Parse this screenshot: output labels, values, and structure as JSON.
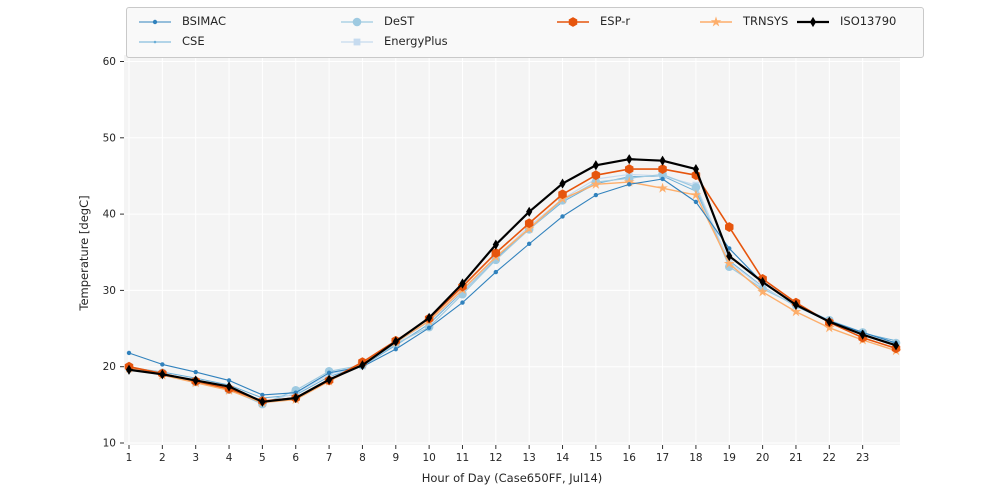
{
  "figure": {
    "background": "#ffffff",
    "panel_bg": "#f4f4f4",
    "grid_color": "#ffffff",
    "tick_color": "#333333",
    "legend_border": "#c9c9c9",
    "legend_bg": "#f9f9f9"
  },
  "chart_data": {
    "type": "line",
    "title": "",
    "xlabel": "Hour of Day (Case650FF, Jul14)",
    "ylabel": "Temperature [degC]",
    "xlim": [
      1,
      24
    ],
    "ylim": [
      10,
      60
    ],
    "x_ticks": [
      1,
      2,
      3,
      4,
      5,
      6,
      7,
      8,
      9,
      10,
      11,
      12,
      13,
      14,
      15,
      16,
      17,
      18,
      19,
      20,
      21,
      22,
      23
    ],
    "y_ticks": [
      10,
      20,
      30,
      40,
      50,
      60
    ],
    "grid": "on",
    "legend_position": "top",
    "x": [
      1,
      2,
      3,
      4,
      5,
      6,
      7,
      8,
      9,
      10,
      11,
      12,
      13,
      14,
      15,
      16,
      17,
      18,
      19,
      20,
      21,
      22,
      23,
      24
    ],
    "z_order": [
      1,
      3,
      2,
      5,
      0,
      4,
      6
    ],
    "series": [
      {
        "name": "BSIMAC",
        "color": "#3182bd",
        "marker": "dot",
        "line_width": 1.1,
        "values": [
          21.8,
          20.3,
          19.3,
          18.2,
          16.3,
          16.6,
          19.2,
          20.0,
          22.3,
          25.1,
          28.4,
          32.4,
          36.1,
          39.7,
          42.5,
          43.9,
          44.6,
          41.6,
          35.5,
          31.0,
          28.2,
          26.0,
          24.5,
          23.1
        ]
      },
      {
        "name": "CSE",
        "color": "#6baed6",
        "marker": "tiny",
        "line_width": 1.0,
        "values": [
          19.9,
          19.3,
          18.5,
          17.6,
          15.9,
          16.3,
          18.7,
          20.1,
          22.8,
          25.6,
          29.8,
          34.2,
          38.0,
          41.6,
          44.0,
          44.9,
          45.0,
          43.0,
          33.9,
          30.5,
          27.9,
          25.9,
          24.4,
          23.4
        ]
      },
      {
        "name": "DeST",
        "color": "#9ecae1",
        "marker": "circle",
        "line_width": 1.2,
        "values": [
          20.0,
          19.2,
          18.0,
          17.0,
          15.1,
          16.9,
          19.4,
          20.2,
          23.0,
          25.2,
          29.5,
          34.0,
          38.0,
          41.8,
          44.2,
          44.7,
          45.2,
          43.5,
          33.1,
          30.2,
          28.1,
          26.1,
          24.5,
          23.1
        ]
      },
      {
        "name": "EnergyPlus",
        "color": "#c6dbef",
        "marker": "square",
        "line_width": 1.2,
        "values": [
          19.9,
          19.1,
          17.9,
          16.9,
          15.3,
          16.5,
          19.0,
          20.1,
          23.1,
          25.9,
          29.9,
          34.3,
          38.4,
          42.0,
          44.6,
          45.2,
          45.0,
          43.8,
          33.7,
          30.4,
          28.0,
          26.0,
          24.3,
          22.9
        ]
      },
      {
        "name": "ESP-r",
        "color": "#e6550d",
        "marker": "hexagon",
        "line_width": 1.6,
        "values": [
          20.0,
          19.1,
          18.1,
          17.1,
          15.5,
          15.9,
          18.2,
          20.6,
          23.4,
          26.3,
          30.5,
          34.9,
          38.8,
          42.6,
          45.1,
          45.9,
          45.9,
          45.1,
          38.3,
          31.5,
          28.4,
          25.8,
          23.8,
          22.4
        ]
      },
      {
        "name": "TRNSYS",
        "color": "#fdae6b",
        "marker": "star",
        "line_width": 1.4,
        "values": [
          19.8,
          18.9,
          17.9,
          16.9,
          15.3,
          15.7,
          18.1,
          20.4,
          23.2,
          26.0,
          30.1,
          34.4,
          38.1,
          42.0,
          43.9,
          44.2,
          43.4,
          42.5,
          33.5,
          29.8,
          27.2,
          25.1,
          23.5,
          22.1
        ]
      },
      {
        "name": "ISO13790",
        "color": "#000000",
        "marker": "diamond",
        "line_width": 2.2,
        "values": [
          19.6,
          19.0,
          18.2,
          17.4,
          15.4,
          15.9,
          18.3,
          20.2,
          23.3,
          26.4,
          30.9,
          36.0,
          40.3,
          44.0,
          46.4,
          47.2,
          47.0,
          45.9,
          34.5,
          31.1,
          28.1,
          25.9,
          24.2,
          22.8
        ]
      }
    ]
  }
}
